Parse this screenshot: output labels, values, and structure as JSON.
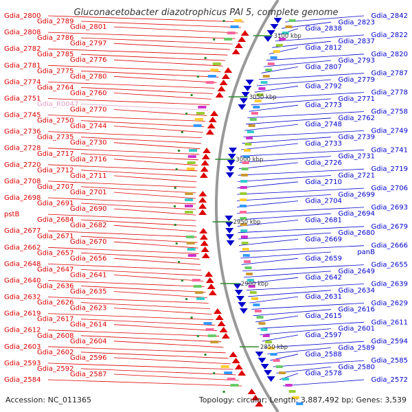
{
  "title": "Gluconacetobacter diazotrophicus PAl 5, complete genome",
  "accession": "Accession: NC_011365",
  "summary": "Topology: circular; Length: 3,887,492 bp; Genes: 3,539",
  "colors": {
    "forward": "#dd0000",
    "reverse": "#0000cc",
    "rna": "#e8a0c8",
    "backbone": "#999999",
    "tick": "#2a8a2a"
  },
  "scale_ticks": [
    "3100 kbp",
    "3050 kbp",
    "3000 kbp",
    "2950 kbp",
    "2900 kbp",
    "2850 kbp"
  ],
  "left_labels": [
    "Gdia_2800",
    "Gdia_2789",
    "Gdia_2801",
    "Gdia_2808",
    "Gdia_2786",
    "Gdia_2797",
    "Gdia_2782",
    "Gdia_2785",
    "Gdia_2776",
    "Gdia_2781",
    "Gdia_2775",
    "Gdia_2780",
    "Gdia_2774",
    "Gdia_2764",
    "Gdia_2760",
    "Gdia_2751",
    "Gdia_R0047",
    "Gdia_2770",
    "Gdia_2745",
    "Gdia_2750",
    "Gdia_2744",
    "Gdia_2736",
    "Gdia_2735",
    "Gdia_2730",
    "Gdia_2728",
    "Gdia_2717",
    "Gdia_2716",
    "Gdia_2720",
    "Gdia_2712",
    "Gdia_2711",
    "Gdia_2708",
    "Gdia_2707",
    "Gdia_2701",
    "Gdia_2698",
    "Gdia_2691",
    "Gdia_2690",
    "pstB",
    "Gdia_2684",
    "Gdia_2682",
    "Gdia_2677",
    "Gdia_2671",
    "Gdia_2670",
    "Gdia_2662",
    "Gdia_2657",
    "Gdia_2656",
    "Gdia_2648",
    "Gdia_2647",
    "Gdia_2641",
    "Gdia_2640",
    "Gdia_2636",
    "Gdia_2635",
    "Gdia_2632",
    "Gdia_2626",
    "Gdia_2623",
    "Gdia_2619",
    "Gdia_2617",
    "Gdia_2614",
    "Gdia_2612",
    "Gdia_2608",
    "Gdia_2604",
    "Gdia_2603",
    "Gdia_2602",
    "Gdia_2596",
    "Gdia_2593",
    "Gdia_2592",
    "Gdia_2587",
    "Gdia_2584"
  ],
  "right_labels": [
    "Gdia_2842",
    "Gdia_2823",
    "Gdia_2838",
    "Gdia_2822",
    "Gdia_2837",
    "Gdia_2812",
    "Gdia_2820",
    "Gdia_2793",
    "Gdia_2807",
    "Gdia_2787",
    "Gdia_2779",
    "Gdia_2792",
    "Gdia_2778",
    "Gdia_2771",
    "Gdia_2773",
    "Gdia_2758",
    "Gdia_2762",
    "Gdia_2748",
    "Gdia_2749",
    "Gdia_2739",
    "Gdia_2733",
    "Gdia_2741",
    "Gdia_2731",
    "Gdia_2726",
    "Gdia_2719",
    "Gdia_2721",
    "Gdia_2710",
    "Gdia_2706",
    "Gdia_2699",
    "Gdia_2704",
    "Gdia_2693",
    "Gdia_2694",
    "Gdia_2681",
    "Gdia_2679",
    "Gdia_2680",
    "Gdia_2669",
    "Gdia_2666",
    "panB",
    "Gdia_2659",
    "Gdia_2655",
    "Gdia_2649",
    "Gdia_2642",
    "Gdia_2639",
    "Gdia_2634",
    "Gdia_2631",
    "Gdia_2629",
    "Gdia_2616",
    "Gdia_2615",
    "Gdia_2611",
    "Gdia_2601",
    "Gdia_2597",
    "Gdia_2594",
    "Gdia_2589",
    "Gdia_2588",
    "Gdia_2585",
    "Gdia_2580",
    "Gdia_2578",
    "Gdia_2572"
  ]
}
